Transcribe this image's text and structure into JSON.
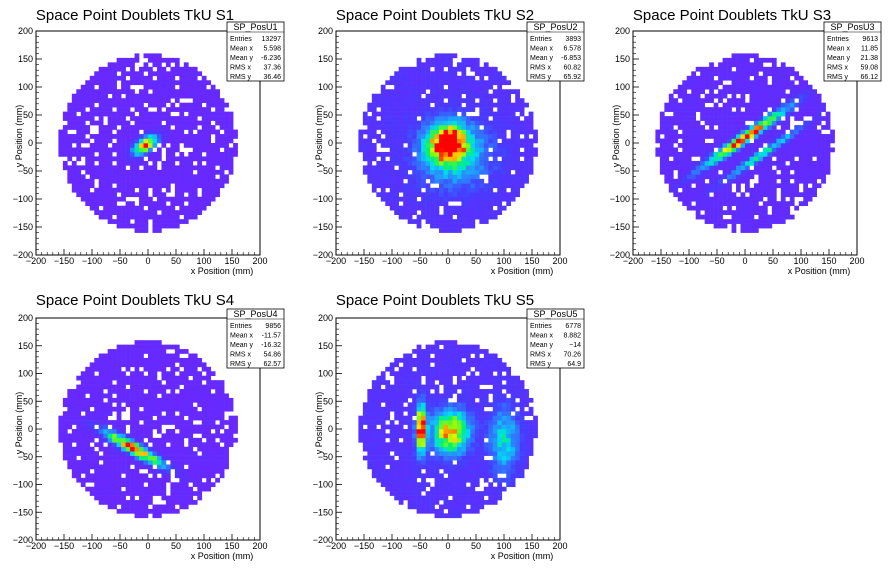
{
  "chart_data": [
    {
      "type": "heatmap",
      "title": "Space Point Doublets TkU S1",
      "xlabel": "x Position (mm)",
      "ylabel": "y Position (mm)",
      "xlim": [
        -200,
        200
      ],
      "ylim": [
        -200,
        200
      ],
      "ticks": [
        "−200",
        "−150",
        "−100",
        "−50",
        "0",
        "50",
        "100",
        "150",
        "200"
      ],
      "stats": {
        "name": "SP_PosU1",
        "rows": [
          {
            "label": "Entries",
            "value": "13297"
          },
          {
            "label": "Mean x",
            "value": "5.598"
          },
          {
            "label": "Mean y",
            "value": "-6.236"
          },
          {
            "label": "RMS x",
            "value": "37.36"
          },
          {
            "label": "RMS y",
            "value": "36.46"
          }
        ]
      },
      "hotspots": [
        {
          "x": -5,
          "y": -3,
          "sx": 16,
          "sy": 8,
          "rot": 35,
          "amp": 1.0
        }
      ],
      "background_level": 0.06
    },
    {
      "type": "heatmap",
      "title": "Space Point Doublets TkU S2",
      "xlabel": "x Position (mm)",
      "ylabel": "y Position (mm)",
      "xlim": [
        -200,
        200
      ],
      "ylim": [
        -200,
        200
      ],
      "ticks": [
        "−200",
        "−150",
        "−100",
        "−50",
        "0",
        "50",
        "100",
        "150",
        "200"
      ],
      "stats": {
        "name": "SP_PosU2",
        "rows": [
          {
            "label": "Entries",
            "value": "3893"
          },
          {
            "label": "Mean x",
            "value": "6.578"
          },
          {
            "label": "Mean y",
            "value": "-6.853"
          },
          {
            "label": "RMS x",
            "value": "60.82"
          },
          {
            "label": "RMS y",
            "value": "65.92"
          }
        ]
      },
      "hotspots": [
        {
          "x": 0,
          "y": 0,
          "sx": 22,
          "sy": 22,
          "rot": 0,
          "amp": 1.0
        },
        {
          "x": 10,
          "y": -20,
          "sx": 45,
          "sy": 40,
          "rot": 0,
          "amp": 0.35
        }
      ],
      "background_level": 0.12
    },
    {
      "type": "heatmap",
      "title": "Space Point Doublets TkU S3",
      "xlabel": "x Position (mm)",
      "ylabel": "y Position (mm)",
      "xlim": [
        -200,
        200
      ],
      "ylim": [
        -200,
        200
      ],
      "ticks": [
        "−200",
        "−150",
        "−100",
        "−50",
        "0",
        "50",
        "100",
        "150",
        "200"
      ],
      "stats": {
        "name": "SP_PosU3",
        "rows": [
          {
            "label": "Entries",
            "value": "9613"
          },
          {
            "label": "Mean x",
            "value": "11.85"
          },
          {
            "label": "Mean y",
            "value": "21.38"
          },
          {
            "label": "RMS x",
            "value": "59.08"
          },
          {
            "label": "RMS y",
            "value": "66.12"
          }
        ]
      },
      "hotspots": [
        {
          "x": 0,
          "y": 10,
          "sx": 60,
          "sy": 6,
          "rot": 35,
          "amp": 1.0
        },
        {
          "x": 30,
          "y": -20,
          "sx": 55,
          "sy": 5,
          "rot": 35,
          "amp": 0.45
        }
      ],
      "background_level": 0.08
    },
    {
      "type": "heatmap",
      "title": "Space Point Doublets TkU S4",
      "xlabel": "x Position (mm)",
      "ylabel": "y Position (mm)",
      "xlim": [
        -200,
        200
      ],
      "ylim": [
        -200,
        200
      ],
      "ticks": [
        "−200",
        "−150",
        "−100",
        "−50",
        "0",
        "50",
        "100",
        "150",
        "200"
      ],
      "stats": {
        "name": "SP_PosU4",
        "rows": [
          {
            "label": "Entries",
            "value": "9856"
          },
          {
            "label": "Mean x",
            "value": "-11.57"
          },
          {
            "label": "Mean y",
            "value": "-16.32"
          },
          {
            "label": "RMS x",
            "value": "54.86"
          },
          {
            "label": "RMS y",
            "value": "62.57"
          }
        ]
      },
      "hotspots": [
        {
          "x": -25,
          "y": -35,
          "sx": 40,
          "sy": 7,
          "rot": -30,
          "amp": 1.0
        }
      ],
      "background_level": 0.06
    },
    {
      "type": "heatmap",
      "title": "Space Point Doublets TkU S5",
      "xlabel": "x Position (mm)",
      "ylabel": "y Position (mm)",
      "xlim": [
        -200,
        200
      ],
      "ylim": [
        -200,
        200
      ],
      "ticks": [
        "−200",
        "−150",
        "−100",
        "−50",
        "0",
        "50",
        "100",
        "150",
        "200"
      ],
      "stats": {
        "name": "SP_PosU5",
        "rows": [
          {
            "label": "Entries",
            "value": "6778"
          },
          {
            "label": "Mean x",
            "value": "8.882"
          },
          {
            "label": "Mean y",
            "value": "−14"
          },
          {
            "label": "RMS x",
            "value": "70.26"
          },
          {
            "label": "RMS y",
            "value": "64.9"
          }
        ]
      },
      "hotspots": [
        {
          "x": -48,
          "y": 0,
          "sx": 6,
          "sy": 30,
          "rot": 0,
          "amp": 1.0
        },
        {
          "x": 5,
          "y": -5,
          "sx": 22,
          "sy": 26,
          "rot": 0,
          "amp": 0.8
        },
        {
          "x": 100,
          "y": -20,
          "sx": 18,
          "sy": 40,
          "rot": 0,
          "amp": 0.35
        }
      ],
      "background_level": 0.12
    }
  ]
}
